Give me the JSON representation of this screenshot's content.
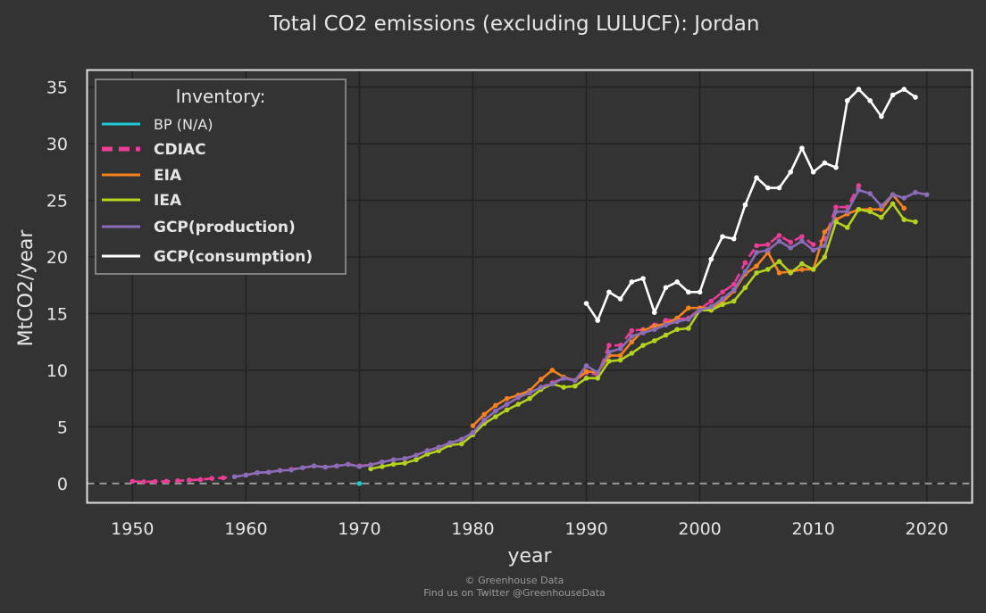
{
  "chart_data": {
    "type": "line",
    "title": "Total CO2 emissions (excluding LULUCF): Jordan",
    "xlabel": "year",
    "ylabel": "MtCO2/year",
    "xlim": [
      1946,
      2024
    ],
    "ylim": [
      -1.7,
      36.5
    ],
    "xticks": [
      1950,
      1960,
      1970,
      1980,
      1990,
      2000,
      2010,
      2020
    ],
    "yticks": [
      0,
      5,
      10,
      15,
      20,
      25,
      30,
      35
    ],
    "grid": true,
    "zero_line": true,
    "legend": {
      "title": "Inventory:",
      "position": "top-left"
    },
    "series": [
      {
        "name": "BP (N/A)",
        "color": "#1ec8d2",
        "style": "solid",
        "na": true,
        "x": [
          1970
        ],
        "y": [
          0
        ]
      },
      {
        "name": "CDIAC",
        "color": "#ee3d96",
        "style": "dashed",
        "x": [
          1950,
          1951,
          1952,
          1953,
          1954,
          1955,
          1956,
          1957,
          1958,
          1959,
          1960,
          1961,
          1962,
          1963,
          1964,
          1965,
          1966,
          1967,
          1968,
          1969,
          1970,
          1971,
          1972,
          1973,
          1974,
          1975,
          1976,
          1977,
          1978,
          1979,
          1980,
          1981,
          1982,
          1983,
          1984,
          1985,
          1986,
          1987,
          1988,
          1989,
          1990,
          1991,
          1992,
          1993,
          1994,
          1995,
          1996,
          1997,
          1998,
          1999,
          2000,
          2001,
          2002,
          2003,
          2004,
          2005,
          2006,
          2007,
          2008,
          2009,
          2010,
          2011,
          2012,
          2013,
          2014
        ],
        "y": [
          0.2,
          0.15,
          0.18,
          0.2,
          0.25,
          0.3,
          0.35,
          0.45,
          0.5,
          0.6,
          0.75,
          0.95,
          1.0,
          1.15,
          1.25,
          1.4,
          1.55,
          1.45,
          1.55,
          1.7,
          1.55,
          1.65,
          1.9,
          2.1,
          2.2,
          2.5,
          2.9,
          3.2,
          3.6,
          3.9,
          4.5,
          5.6,
          6.4,
          7.0,
          7.6,
          8.0,
          8.5,
          8.9,
          9.3,
          9.1,
          9.8,
          9.6,
          12.2,
          12.2,
          13.5,
          13.6,
          14.0,
          14.4,
          14.5,
          14.6,
          15.4,
          16.1,
          16.9,
          17.6,
          19.5,
          21.0,
          21.1,
          21.9,
          21.3,
          21.8,
          21.1,
          21.6,
          24.4,
          24.4,
          26.3
        ]
      },
      {
        "name": "EIA",
        "color": "#f5821f",
        "style": "solid",
        "x": [
          1980,
          1981,
          1982,
          1983,
          1984,
          1985,
          1986,
          1987,
          1988,
          1989,
          1990,
          1991,
          1992,
          1993,
          1994,
          1995,
          1996,
          1997,
          1998,
          1999,
          2000,
          2001,
          2002,
          2003,
          2004,
          2005,
          2006,
          2007,
          2008,
          2009,
          2010,
          2011,
          2012,
          2013,
          2014,
          2015,
          2016,
          2017,
          2018
        ],
        "y": [
          5.1,
          6.1,
          6.9,
          7.5,
          7.8,
          8.2,
          9.2,
          10.0,
          9.4,
          9.1,
          9.9,
          9.8,
          11.3,
          11.3,
          12.5,
          13.5,
          13.9,
          14.1,
          14.6,
          15.5,
          15.5,
          15.5,
          16.0,
          17.0,
          18.5,
          19.2,
          20.4,
          18.6,
          18.7,
          18.9,
          18.9,
          22.2,
          23.3,
          23.8,
          24.2,
          24.2,
          24.2,
          25.5,
          24.3
        ]
      },
      {
        "name": "IEA",
        "color": "#b5d21e",
        "style": "solid",
        "x": [
          1971,
          1972,
          1973,
          1974,
          1975,
          1976,
          1977,
          1978,
          1979,
          1980,
          1981,
          1982,
          1983,
          1984,
          1985,
          1986,
          1987,
          1988,
          1989,
          1990,
          1991,
          1992,
          1993,
          1994,
          1995,
          1996,
          1997,
          1998,
          1999,
          2000,
          2001,
          2002,
          2003,
          2004,
          2005,
          2006,
          2007,
          2008,
          2009,
          2010,
          2011,
          2012,
          2013,
          2014,
          2015,
          2016,
          2017,
          2018,
          2019
        ],
        "y": [
          1.3,
          1.5,
          1.7,
          1.8,
          2.1,
          2.6,
          2.9,
          3.4,
          3.5,
          4.3,
          5.3,
          5.9,
          6.5,
          7.0,
          7.5,
          8.3,
          8.8,
          8.5,
          8.6,
          9.3,
          9.3,
          10.8,
          10.9,
          11.5,
          12.2,
          12.6,
          13.1,
          13.6,
          13.7,
          15.3,
          15.3,
          15.8,
          16.1,
          17.3,
          18.6,
          18.9,
          19.6,
          18.6,
          19.4,
          18.9,
          20.0,
          23.1,
          22.6,
          24.2,
          24.0,
          23.5,
          24.7,
          23.3,
          23.1
        ]
      },
      {
        "name": "GCP(production)",
        "color": "#8a6cb8",
        "style": "solid",
        "x": [
          1959,
          1960,
          1961,
          1962,
          1963,
          1964,
          1965,
          1966,
          1967,
          1968,
          1969,
          1970,
          1971,
          1972,
          1973,
          1974,
          1975,
          1976,
          1977,
          1978,
          1979,
          1980,
          1981,
          1982,
          1983,
          1984,
          1985,
          1986,
          1987,
          1988,
          1989,
          1990,
          1991,
          1992,
          1993,
          1994,
          1995,
          1996,
          1997,
          1998,
          1999,
          2000,
          2001,
          2002,
          2003,
          2004,
          2005,
          2006,
          2007,
          2008,
          2009,
          2010,
          2011,
          2012,
          2013,
          2014,
          2015,
          2016,
          2017,
          2018,
          2019,
          2020
        ],
        "y": [
          0.6,
          0.75,
          0.95,
          1.0,
          1.15,
          1.2,
          1.4,
          1.55,
          1.45,
          1.55,
          1.7,
          1.5,
          1.65,
          1.9,
          2.1,
          2.2,
          2.5,
          2.9,
          3.2,
          3.6,
          3.9,
          4.5,
          5.6,
          6.4,
          7.0,
          7.6,
          8.0,
          8.5,
          8.8,
          9.3,
          9.1,
          10.4,
          9.8,
          11.6,
          11.9,
          13.0,
          13.3,
          13.6,
          14.0,
          14.3,
          14.5,
          15.3,
          15.6,
          16.3,
          17.1,
          18.7,
          20.4,
          20.6,
          21.4,
          20.8,
          21.4,
          20.6,
          21.0,
          24.0,
          24.0,
          25.9,
          25.6,
          24.5,
          25.5,
          25.2,
          25.7,
          25.5
        ]
      },
      {
        "name": "GCP(consumption)",
        "color": "#ffffff",
        "style": "solid",
        "x": [
          1990,
          1991,
          1992,
          1993,
          1994,
          1995,
          1996,
          1997,
          1998,
          1999,
          2000,
          2001,
          2002,
          2003,
          2004,
          2005,
          2006,
          2007,
          2008,
          2009,
          2010,
          2011,
          2012,
          2013,
          2014,
          2015,
          2016,
          2017,
          2018,
          2019
        ],
        "y": [
          15.9,
          14.4,
          16.9,
          16.3,
          17.8,
          18.1,
          15.1,
          17.3,
          17.8,
          16.9,
          16.9,
          19.8,
          21.8,
          21.6,
          24.6,
          27.0,
          26.1,
          26.1,
          27.5,
          29.6,
          27.5,
          28.3,
          27.9,
          33.8,
          34.8,
          33.8,
          32.4,
          34.3,
          34.8,
          34.1
        ]
      }
    ]
  },
  "credits": {
    "line1": "© Greenhouse Data",
    "line2": "Find us on Twitter @GreenhouseData"
  }
}
